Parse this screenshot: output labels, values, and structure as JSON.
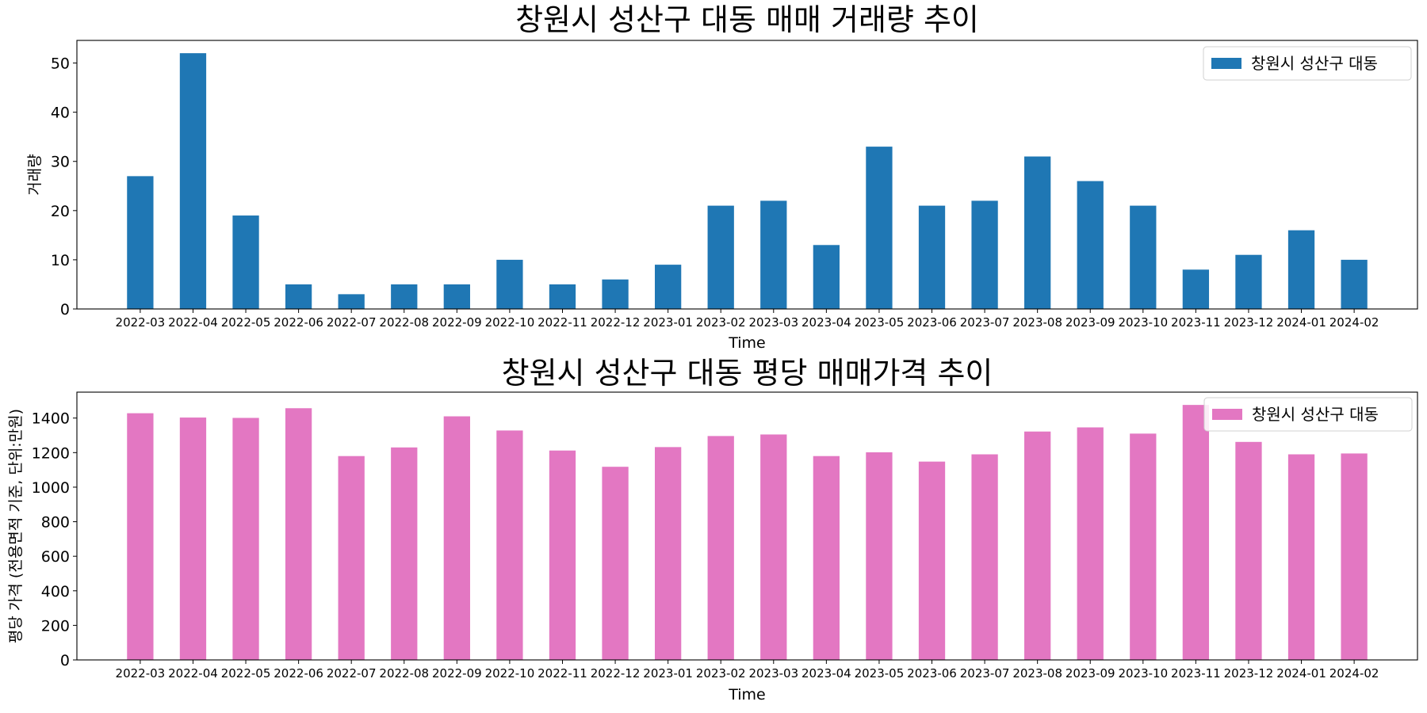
{
  "chart_data": [
    {
      "type": "bar",
      "title": "창원시 성산구 대동 매매 거래량 추이",
      "xlabel": "Time",
      "ylabel": "거래량",
      "ylim": [
        0,
        54.6
      ],
      "yticks": [
        0,
        10,
        20,
        30,
        40,
        50
      ],
      "legend_position": "top-right",
      "grid": false,
      "categories": [
        "2022-03",
        "2022-04",
        "2022-05",
        "2022-06",
        "2022-07",
        "2022-08",
        "2022-09",
        "2022-10",
        "2022-11",
        "2022-12",
        "2023-01",
        "2023-02",
        "2023-03",
        "2023-04",
        "2023-05",
        "2023-06",
        "2023-07",
        "2023-08",
        "2023-09",
        "2023-10",
        "2023-11",
        "2023-12",
        "2024-01",
        "2024-02"
      ],
      "series": [
        {
          "name": "창원시 성산구 대동",
          "color": "#1f77b4",
          "values": [
            27,
            52,
            19,
            5,
            3,
            5,
            5,
            10,
            5,
            6,
            9,
            21,
            22,
            13,
            33,
            21,
            22,
            31,
            26,
            21,
            8,
            11,
            16,
            10
          ]
        }
      ]
    },
    {
      "type": "bar",
      "title": "창원시 성산구 대동 평당 매매가격 추이",
      "xlabel": "Time",
      "ylabel": "평당 가격 (전용면적 기준, 단위:만원)",
      "ylim": [
        0,
        1550
      ],
      "yticks": [
        0,
        200,
        400,
        600,
        800,
        1000,
        1200,
        1400
      ],
      "legend_position": "top-right",
      "grid": false,
      "categories": [
        "2022-03",
        "2022-04",
        "2022-05",
        "2022-06",
        "2022-07",
        "2022-08",
        "2022-09",
        "2022-10",
        "2022-11",
        "2022-12",
        "2023-01",
        "2023-02",
        "2023-03",
        "2023-04",
        "2023-05",
        "2023-06",
        "2023-07",
        "2023-08",
        "2023-09",
        "2023-10",
        "2023-11",
        "2023-12",
        "2024-01",
        "2024-02"
      ],
      "series": [
        {
          "name": "창원시 성산구 대동",
          "color": "#e377c2",
          "values": [
            1428,
            1403,
            1401,
            1457,
            1180,
            1230,
            1410,
            1328,
            1212,
            1118,
            1232,
            1296,
            1305,
            1180,
            1202,
            1148,
            1190,
            1322,
            1346,
            1310,
            1476,
            1262,
            1190,
            1195
          ]
        }
      ]
    }
  ]
}
